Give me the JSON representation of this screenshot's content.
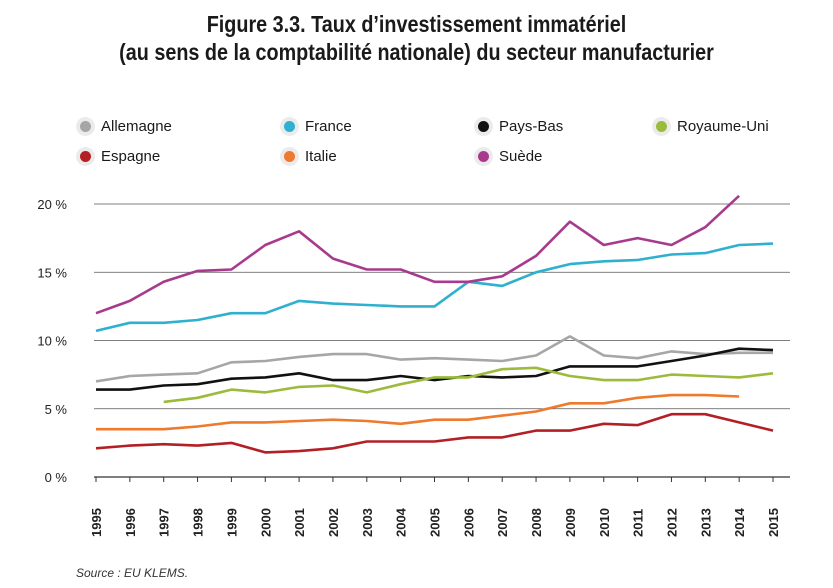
{
  "title_line1": "Figure 3.3. Taux d’investissement immatériel",
  "title_line2": "(au sens de la comptabilité nationale) du secteur manufacturier",
  "source": "Source : EU KLEMS.",
  "chart_data": {
    "type": "line",
    "x": [
      1995,
      1996,
      1997,
      1998,
      1999,
      2000,
      2001,
      2002,
      2003,
      2004,
      2005,
      2006,
      2007,
      2008,
      2009,
      2010,
      2011,
      2012,
      2013,
      2014,
      2015
    ],
    "ylim": [
      0,
      20
    ],
    "y_ticks": [
      {
        "value": 0,
        "label": "0 %"
      },
      {
        "value": 5,
        "label": "5 %"
      },
      {
        "value": 10,
        "label": "10 %"
      },
      {
        "value": 15,
        "label": "15 %"
      },
      {
        "value": 20,
        "label": "20 %"
      }
    ],
    "grid": "horizontal",
    "legend_position": "top",
    "series": [
      {
        "name": "Allemagne",
        "color": "#a6a6a6",
        "values": [
          7.0,
          7.4,
          7.5,
          7.6,
          8.4,
          8.5,
          8.8,
          9.0,
          9.0,
          8.6,
          8.7,
          8.6,
          8.5,
          8.9,
          10.3,
          8.9,
          8.7,
          9.2,
          9.0,
          9.1,
          9.1
        ]
      },
      {
        "name": "France",
        "color": "#2fb0cf",
        "values": [
          10.7,
          11.3,
          11.3,
          11.5,
          12.0,
          12.0,
          12.9,
          12.7,
          12.6,
          12.5,
          12.5,
          14.3,
          14.0,
          15.0,
          15.6,
          15.8,
          15.9,
          16.3,
          16.4,
          17.0,
          17.1
        ]
      },
      {
        "name": "Pays-Bas",
        "color": "#111111",
        "values": [
          6.4,
          6.4,
          6.7,
          6.8,
          7.2,
          7.3,
          7.6,
          7.1,
          7.1,
          7.4,
          7.1,
          7.4,
          7.3,
          7.4,
          8.1,
          8.1,
          8.1,
          8.5,
          8.9,
          9.4,
          9.3
        ]
      },
      {
        "name": "Royaume-Uni",
        "color": "#9bbb3c",
        "values": [
          null,
          null,
          5.5,
          5.8,
          6.4,
          6.2,
          6.6,
          6.7,
          6.2,
          6.8,
          7.3,
          7.3,
          7.9,
          8.0,
          7.4,
          7.1,
          7.1,
          7.5,
          7.4,
          7.3,
          7.6
        ]
      },
      {
        "name": "Espagne",
        "color": "#b22026",
        "values": [
          2.1,
          2.3,
          2.4,
          2.3,
          2.5,
          1.8,
          1.9,
          2.1,
          2.6,
          2.6,
          2.6,
          2.9,
          2.9,
          3.4,
          3.4,
          3.9,
          3.8,
          4.6,
          4.6,
          4.0,
          3.4
        ]
      },
      {
        "name": "Italie",
        "color": "#ed7a2d",
        "values": [
          3.5,
          3.5,
          3.5,
          3.7,
          4.0,
          4.0,
          4.1,
          4.2,
          4.1,
          3.9,
          4.2,
          4.2,
          4.5,
          4.8,
          5.4,
          5.4,
          5.8,
          6.0,
          6.0,
          5.9,
          null
        ]
      },
      {
        "name": "Suède",
        "color": "#a83a8e",
        "values": [
          12.0,
          12.9,
          14.3,
          15.1,
          15.2,
          17.0,
          18.0,
          16.0,
          15.2,
          15.2,
          14.3,
          14.3,
          14.7,
          16.2,
          18.7,
          17.0,
          17.5,
          17.0,
          18.3,
          20.6,
          null
        ]
      }
    ]
  }
}
